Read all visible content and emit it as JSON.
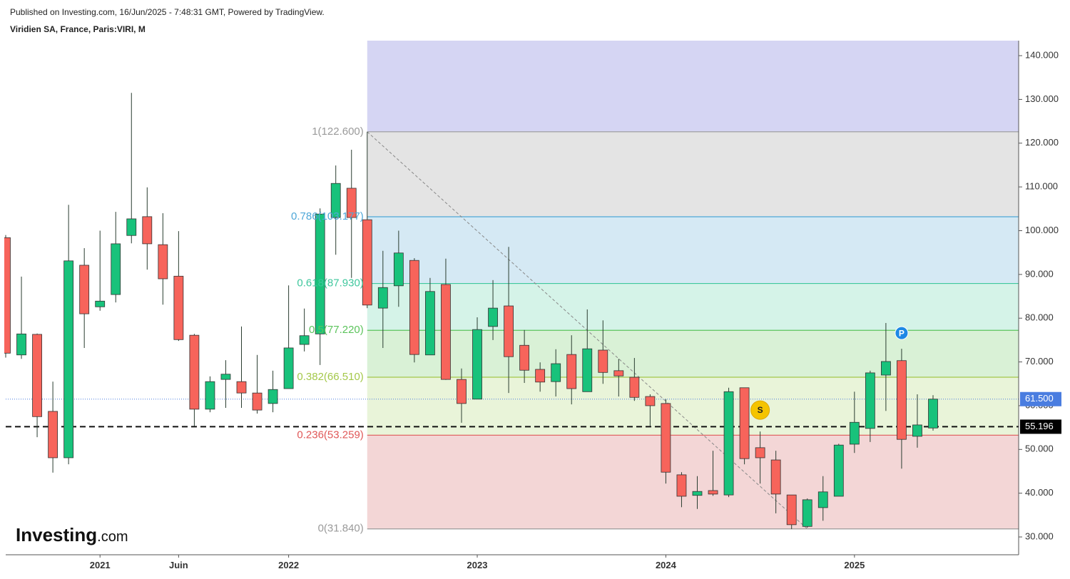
{
  "header": {
    "published": "Published on Investing.com, 16/Jun/2025 - 7:48:31 GMT, Powered by TradingView.",
    "symbol": "Viridien SA, France, Paris:VIRI, M"
  },
  "logo": {
    "name": "Investing",
    "suffix": ".com"
  },
  "chart_data": {
    "type": "candlestick",
    "categories": [
      null,
      null,
      null,
      null,
      null,
      null,
      "2021",
      null,
      null,
      null,
      null,
      "Juin",
      null,
      null,
      null,
      null,
      null,
      null,
      "2022",
      null,
      null,
      null,
      null,
      null,
      null,
      null,
      null,
      null,
      null,
      null,
      "2023",
      null,
      null,
      null,
      null,
      null,
      null,
      null,
      null,
      null,
      null,
      null,
      "2024",
      null,
      null,
      null,
      null,
      null,
      null,
      null,
      null,
      null,
      null,
      null,
      "2025",
      null,
      null,
      null,
      null,
      null
    ],
    "open": [
      98.4,
      71.6,
      76.3,
      58.7,
      48.1,
      92.1,
      82.6,
      85.4,
      98.9,
      103.2,
      96.8,
      89.6,
      76.1,
      59.2,
      66,
      65.5,
      62.9,
      60.5,
      63.9,
      74,
      76.4,
      103,
      109.7,
      102.5,
      82.3,
      87.4,
      93.2,
      71.6,
      87.7,
      66,
      61.5,
      78.1,
      82.8,
      73.8,
      68.3,
      65.5,
      71.7,
      63.2,
      72.7,
      68,
      66.5,
      62.1,
      60.5,
      44.2,
      39.5,
      40.6,
      39.6,
      64.1,
      50.4,
      47.6,
      39.6,
      32.4,
      36.7,
      39.3,
      51.2,
      54.8,
      67,
      70.3,
      53,
      54.9
    ],
    "high": [
      99,
      89.5,
      76.5,
      65.5,
      105.9,
      96,
      100,
      104.3,
      131.5,
      109.9,
      104,
      99.9,
      76.4,
      66.7,
      70.4,
      78.1,
      71.6,
      68,
      87.5,
      82.2,
      105.1,
      114.9,
      118.5,
      122.6,
      95.4,
      100,
      93.7,
      89.2,
      93.6,
      68.5,
      80.2,
      88.7,
      96.3,
      77.3,
      69.9,
      72.9,
      76.1,
      82,
      79.5,
      70.7,
      70.9,
      62.6,
      61.5,
      44.8,
      43.9,
      49.7,
      64.1,
      64.1,
      54.1,
      49.7,
      39.6,
      38.8,
      43.9,
      51.3,
      63.2,
      68,
      78.9,
      73,
      62.6,
      62.4
    ],
    "low": [
      71,
      70.7,
      52.8,
      44.7,
      46.6,
      73.2,
      81.7,
      83.6,
      97.1,
      91.1,
      83.1,
      74.8,
      55.3,
      58.5,
      59.5,
      59.5,
      58.2,
      58.5,
      63.9,
      72.4,
      69.3,
      94.5,
      89.2,
      82.3,
      73.2,
      82.6,
      69.9,
      71.6,
      65.9,
      56.1,
      61.5,
      75,
      62.9,
      65.2,
      63.2,
      62.1,
      60.3,
      63.2,
      65,
      62.1,
      61.1,
      55.3,
      42.2,
      36.8,
      36.4,
      39.4,
      39.1,
      46.6,
      42.2,
      35.4,
      31.8,
      32.1,
      33.7,
      39.3,
      49.2,
      51.7,
      58.8,
      45.6,
      50.4,
      54.3
    ],
    "close": [
      72,
      76.4,
      57.5,
      48.1,
      93.1,
      81,
      83.9,
      97,
      102.7,
      97,
      89,
      75.1,
      59.2,
      65.5,
      67.2,
      62.9,
      59,
      63.7,
      73.2,
      76,
      103.8,
      110.8,
      103,
      83,
      87,
      94.9,
      71.7,
      86.1,
      66,
      60.5,
      77.4,
      82.3,
      71.2,
      68.1,
      65.4,
      69.6,
      63.9,
      73,
      67.6,
      66.8,
      61.9,
      60,
      44.8,
      39.3,
      40.4,
      39.8,
      63.2,
      47.9,
      48.1,
      39.8,
      32.8,
      38.5,
      40.3,
      51,
      56.2,
      67.5,
      70.1,
      52.3,
      55.6,
      61.5
    ],
    "up_color": "#18c27b",
    "down_color": "#f7645b",
    "ylim": [
      25.93,
      143.43
    ],
    "yticks": [
      {
        "value": 30,
        "label": "30.000"
      },
      {
        "value": 40,
        "label": "40.000"
      },
      {
        "value": 50,
        "label": "50.000"
      },
      {
        "value": 60,
        "label": "60.000"
      },
      {
        "value": 70,
        "label": "70.000"
      },
      {
        "value": 80,
        "label": "80.000"
      },
      {
        "value": 90,
        "label": "90.000"
      },
      {
        "value": 100,
        "label": "100.000"
      },
      {
        "value": 110,
        "label": "110.000"
      },
      {
        "value": 120,
        "label": "120.000"
      },
      {
        "value": 130,
        "label": "130.000"
      },
      {
        "value": 140,
        "label": "140.000"
      }
    ],
    "fib_start_index": 23,
    "fib_levels": [
      {
        "label": "1(122.600)",
        "value": 122.6,
        "color": "#9a9a9a",
        "fill": "#d5d5f3"
      },
      {
        "label": "0.786(103.177)",
        "value": 103.177,
        "color": "#4ea7d8",
        "fill": "#e4e4e4"
      },
      {
        "label": "0.618(87.930)",
        "value": 87.93,
        "color": "#3fc79d",
        "fill": "#d5e9f4"
      },
      {
        "label": "0.5(77.220)",
        "value": 77.22,
        "color": "#5cc45c",
        "fill": "#d5f3e8"
      },
      {
        "label": "0.382(66.510)",
        "value": 66.51,
        "color": "#a4c84a",
        "fill": "#d9f1d6"
      },
      {
        "label": "0.236(53.259)",
        "value": 53.259,
        "color": "#e05858",
        "fill": "#e9f4d9"
      },
      {
        "label": "0(31.840)",
        "value": 31.84,
        "color": "#9a9a9a",
        "fill": "#f3d6d6"
      }
    ],
    "trendline": {
      "from_index": 23,
      "from_value": 122.6,
      "to_index": 51,
      "to_value": 31.84
    },
    "last_price": {
      "value": 61.5,
      "label": "61.500",
      "color": "#4a7de0"
    },
    "reference_line": {
      "value": 55.196,
      "label": "55.196"
    },
    "markers": [
      {
        "label": "S",
        "index": 48,
        "value": 59,
        "color": "#f5c400"
      },
      {
        "label": "P",
        "index": 57,
        "value": 76.6,
        "color": "#1e88e5"
      }
    ]
  }
}
